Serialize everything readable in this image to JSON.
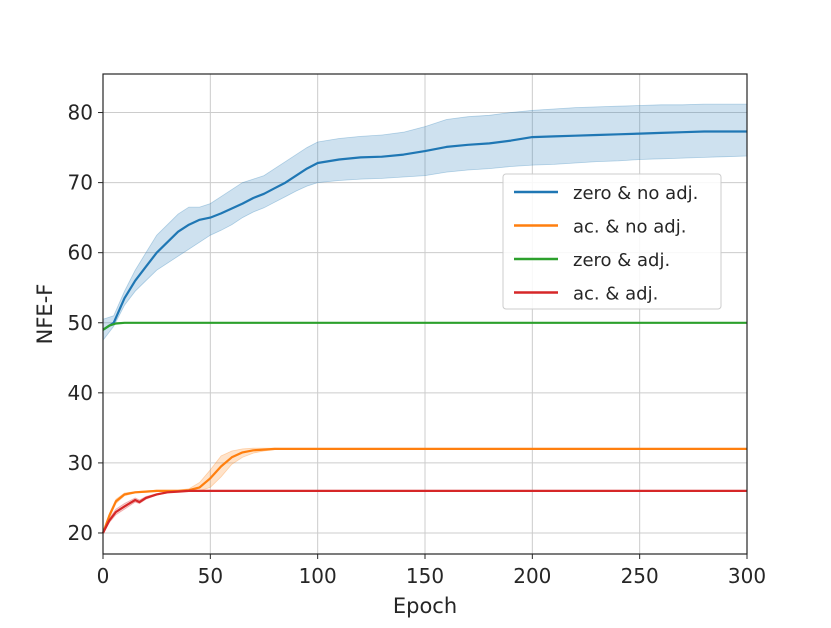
{
  "chart_data": {
    "type": "line",
    "xlabel": "Epoch",
    "ylabel": "NFE-F",
    "xlim": [
      0,
      300
    ],
    "ylim": [
      17,
      85.5
    ],
    "xticks": [
      0,
      50,
      100,
      150,
      200,
      250,
      300
    ],
    "yticks": [
      20,
      30,
      40,
      50,
      60,
      70,
      80
    ],
    "grid": true,
    "legend_position": "center-right",
    "series": [
      {
        "name": "zero & no adj.",
        "color": "#1f77b4",
        "x": [
          0,
          5,
          10,
          15,
          20,
          25,
          30,
          35,
          40,
          45,
          50,
          55,
          60,
          65,
          70,
          75,
          80,
          85,
          90,
          95,
          100,
          110,
          120,
          130,
          140,
          150,
          160,
          170,
          180,
          190,
          200,
          210,
          220,
          230,
          240,
          250,
          260,
          270,
          280,
          290,
          300
        ],
        "y": [
          49,
          50,
          53.5,
          56,
          58,
          60,
          61.5,
          63,
          64,
          64.7,
          65,
          65.6,
          66.3,
          67,
          67.8,
          68.4,
          69.2,
          70,
          71,
          72,
          72.8,
          73.3,
          73.6,
          73.7,
          74,
          74.5,
          75.1,
          75.4,
          75.6,
          76,
          76.5,
          76.6,
          76.7,
          76.8,
          76.9,
          77,
          77.1,
          77.2,
          77.3,
          77.3,
          77.3
        ],
        "lower": [
          47.5,
          49.5,
          52.5,
          54.5,
          56,
          57.5,
          58.5,
          59.5,
          60.5,
          61.5,
          62.5,
          63.2,
          64,
          65,
          65.8,
          66.4,
          67.2,
          68,
          68.8,
          69.5,
          70,
          70.3,
          70.5,
          70.6,
          70.8,
          71,
          71.5,
          71.8,
          72,
          72.3,
          72.5,
          72.6,
          72.8,
          73,
          73.1,
          73.3,
          73.4,
          73.5,
          73.6,
          73.7,
          73.8
        ],
        "upper": [
          50.5,
          51,
          54.5,
          57.5,
          60,
          62.5,
          64,
          65.5,
          66.5,
          66.5,
          67,
          68,
          69,
          70,
          70.5,
          71,
          72,
          73,
          74,
          75,
          75.8,
          76.3,
          76.6,
          76.8,
          77.2,
          78,
          79,
          79.4,
          79.6,
          80,
          80.3,
          80.5,
          80.7,
          80.8,
          80.9,
          81,
          81.1,
          81.1,
          81.2,
          81.2,
          81.2
        ]
      },
      {
        "name": "ac. & no adj.",
        "color": "#ff7f0e",
        "x": [
          0,
          3,
          6,
          10,
          15,
          20,
          25,
          30,
          35,
          40,
          45,
          50,
          55,
          60,
          65,
          70,
          75,
          80,
          90,
          100,
          150,
          200,
          250,
          300
        ],
        "y": [
          20,
          22.5,
          24.5,
          25.5,
          25.8,
          25.9,
          26,
          26,
          26,
          26.1,
          26.5,
          27.8,
          29.5,
          30.8,
          31.5,
          31.8,
          31.9,
          32,
          32,
          32,
          32,
          32,
          32,
          32
        ],
        "lower": [
          20,
          22.2,
          24.2,
          25.3,
          25.7,
          25.8,
          25.9,
          25.9,
          25.9,
          25.9,
          26,
          26.5,
          28,
          29.8,
          30.8,
          31.4,
          31.7,
          31.9,
          32,
          32,
          32,
          32,
          32,
          32
        ],
        "upper": [
          20,
          22.8,
          24.8,
          25.7,
          25.9,
          26,
          26.1,
          26.1,
          26.1,
          26.3,
          27.2,
          29,
          31,
          31.7,
          32,
          32.1,
          32.1,
          32.1,
          32,
          32,
          32,
          32,
          32,
          32
        ]
      },
      {
        "name": "zero & adj.",
        "color": "#2ca02c",
        "x": [
          0,
          3,
          6,
          10,
          20,
          50,
          100,
          150,
          200,
          250,
          300
        ],
        "y": [
          49,
          49.6,
          49.9,
          50,
          50,
          50,
          50,
          50,
          50,
          50,
          50
        ]
      },
      {
        "name": "ac. & adj.",
        "color": "#d62728",
        "x": [
          0,
          3,
          6,
          10,
          15,
          17,
          20,
          25,
          30,
          35,
          40,
          50,
          100,
          150,
          200,
          250,
          300
        ],
        "y": [
          20,
          21.8,
          23,
          23.8,
          24.7,
          24.4,
          25,
          25.5,
          25.8,
          25.9,
          26,
          26,
          26,
          26,
          26,
          26,
          26
        ],
        "lower": [
          20,
          21.5,
          22.6,
          23.4,
          24.4,
          24.2,
          24.8,
          25.4,
          25.7,
          25.9,
          26,
          26,
          26,
          26,
          26,
          26,
          26
        ],
        "upper": [
          20,
          22.1,
          23.4,
          24.2,
          25,
          24.7,
          25.2,
          25.6,
          25.9,
          26,
          26,
          26,
          26,
          26,
          26,
          26,
          26
        ]
      }
    ]
  }
}
